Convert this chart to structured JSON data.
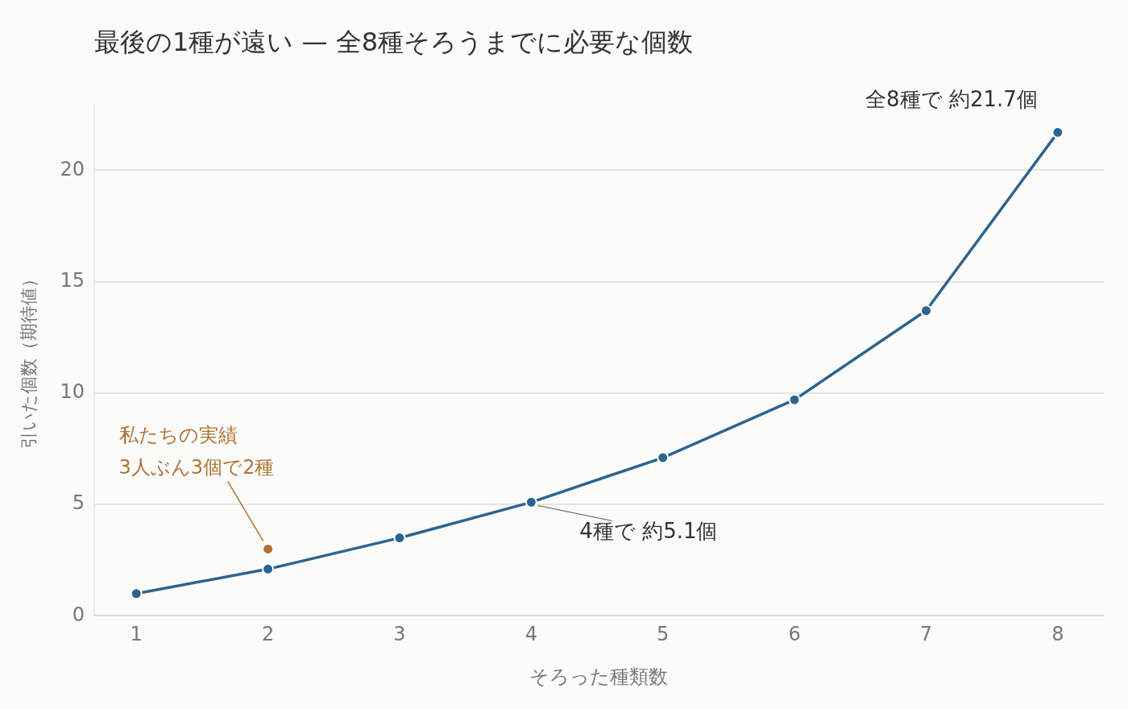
{
  "chart_data": {
    "type": "line",
    "title": "最後の1種が遠い — 全8種そろうまでに必要な個数",
    "xlabel": "そろった種類数",
    "ylabel": "引いた個数（期待値）",
    "x": [
      1,
      2,
      3,
      4,
      5,
      6,
      7,
      8
    ],
    "series": [
      {
        "color": "#2c6491",
        "values": [
          1,
          2.1,
          3.5,
          5.1,
          7.1,
          9.7,
          13.7,
          21.7
        ]
      },
      {
        "type": "scatter",
        "name": "私たちの実績",
        "color": "#b07236",
        "x": [
          2
        ],
        "values": [
          3
        ]
      }
    ],
    "xlim": [
      0.68,
      8.35
    ],
    "xticks": [
      1,
      2,
      3,
      4,
      5,
      6,
      7,
      8
    ],
    "ylim": [
      0,
      23
    ],
    "yticks": [
      0,
      5,
      10,
      15,
      20
    ],
    "grid": "y",
    "marker": "circle",
    "line_style": "solid",
    "annotations": [
      {
        "text": "全8種で 約21.7個",
        "x": 8,
        "y": 21.7
      },
      {
        "text": "4種で 約5.1個",
        "x": 4,
        "y": 5.1
      },
      "3人ぶん3個で2種"
    ]
  }
}
